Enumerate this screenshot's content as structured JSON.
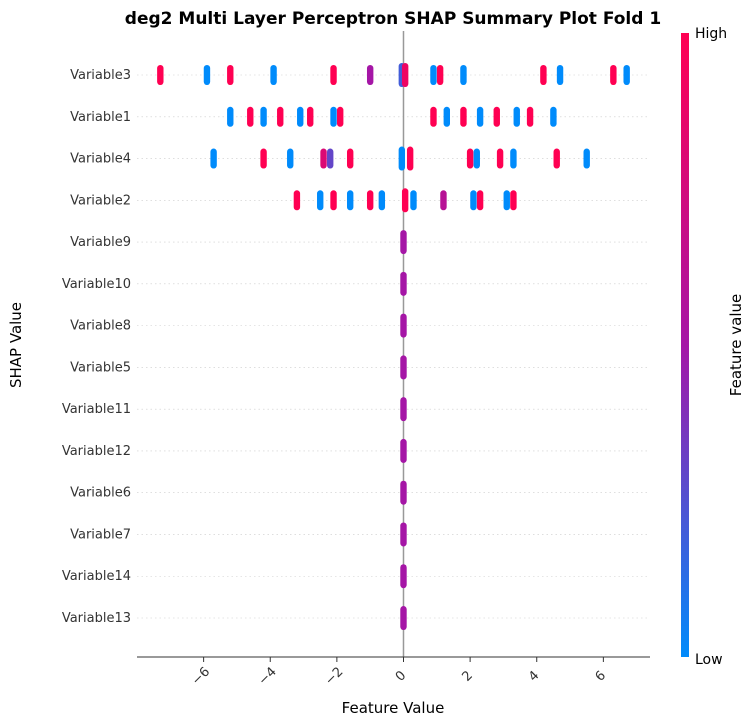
{
  "chart_data": {
    "type": "scatter",
    "title": "deg2 Multi Layer Perceptron SHAP Summary Plot Fold 1",
    "xlabel": "Feature Value",
    "ylabel": "SHAP Value",
    "xlim": [
      -8.0,
      7.4
    ],
    "x_ticks": [
      -6,
      -4,
      -2,
      0,
      2,
      4,
      6
    ],
    "x_tick_labels": [
      "−6",
      "−4",
      "−2",
      "0",
      "2",
      "4",
      "6"
    ],
    "grid": "horizontal dotted",
    "colorbar": {
      "label": "Feature value",
      "high_label": "High",
      "low_label": "Low",
      "low_color": "#008bfb",
      "mid_color": "#a516a6",
      "high_color": "#ff0052"
    },
    "categories": [
      "Variable3",
      "Variable1",
      "Variable4",
      "Variable2",
      "Variable9",
      "Variable10",
      "Variable8",
      "Variable5",
      "Variable11",
      "Variable12",
      "Variable6",
      "Variable7",
      "Variable14",
      "Variable13"
    ],
    "series": [
      {
        "category": "Variable3",
        "points": [
          {
            "x": -7.3,
            "v": 1
          },
          {
            "x": -5.9,
            "v": 0
          },
          {
            "x": -5.2,
            "v": 1
          },
          {
            "x": -3.9,
            "v": 0
          },
          {
            "x": -2.1,
            "v": 1
          },
          {
            "x": -1.0,
            "v": 0.5
          },
          {
            "x": -0.05,
            "v": 0.2
          },
          {
            "x": 0.05,
            "v": 0.9
          },
          {
            "x": 0.9,
            "v": 0
          },
          {
            "x": 1.1,
            "v": 1
          },
          {
            "x": 1.8,
            "v": 0
          },
          {
            "x": 4.2,
            "v": 1
          },
          {
            "x": 4.7,
            "v": 0
          },
          {
            "x": 6.3,
            "v": 1
          },
          {
            "x": 6.7,
            "v": 0
          }
        ]
      },
      {
        "category": "Variable1",
        "points": [
          {
            "x": -5.2,
            "v": 0
          },
          {
            "x": -4.6,
            "v": 1
          },
          {
            "x": -4.2,
            "v": 0
          },
          {
            "x": -3.7,
            "v": 1
          },
          {
            "x": -3.1,
            "v": 0
          },
          {
            "x": -2.8,
            "v": 1
          },
          {
            "x": -2.1,
            "v": 0
          },
          {
            "x": -1.9,
            "v": 1
          },
          {
            "x": 0.9,
            "v": 1
          },
          {
            "x": 1.3,
            "v": 0
          },
          {
            "x": 1.8,
            "v": 1
          },
          {
            "x": 2.3,
            "v": 0
          },
          {
            "x": 2.8,
            "v": 1
          },
          {
            "x": 3.4,
            "v": 0
          },
          {
            "x": 3.8,
            "v": 1
          },
          {
            "x": 4.5,
            "v": 0
          }
        ]
      },
      {
        "category": "Variable4",
        "points": [
          {
            "x": -5.7,
            "v": 0
          },
          {
            "x": -4.2,
            "v": 1
          },
          {
            "x": -3.4,
            "v": 0
          },
          {
            "x": -2.4,
            "v": 0.8
          },
          {
            "x": -2.2,
            "v": 0.3
          },
          {
            "x": -1.6,
            "v": 1
          },
          {
            "x": -0.05,
            "v": 0
          },
          {
            "x": 0.2,
            "v": 1
          },
          {
            "x": 2.0,
            "v": 1
          },
          {
            "x": 2.2,
            "v": 0
          },
          {
            "x": 2.9,
            "v": 1
          },
          {
            "x": 3.3,
            "v": 0
          },
          {
            "x": 4.6,
            "v": 1
          },
          {
            "x": 5.5,
            "v": 0
          }
        ]
      },
      {
        "category": "Variable2",
        "points": [
          {
            "x": -3.2,
            "v": 1
          },
          {
            "x": -2.5,
            "v": 0
          },
          {
            "x": -2.1,
            "v": 1
          },
          {
            "x": -1.6,
            "v": 0
          },
          {
            "x": -1.0,
            "v": 1
          },
          {
            "x": -0.65,
            "v": 0
          },
          {
            "x": 0.05,
            "v": 1
          },
          {
            "x": 0.3,
            "v": 0
          },
          {
            "x": 1.2,
            "v": 0.6
          },
          {
            "x": 2.1,
            "v": 0
          },
          {
            "x": 2.3,
            "v": 1
          },
          {
            "x": 3.1,
            "v": 0
          },
          {
            "x": 3.3,
            "v": 1
          }
        ]
      },
      {
        "category": "Variable9",
        "points": [
          {
            "x": 0.0,
            "v": 0.5
          }
        ]
      },
      {
        "category": "Variable10",
        "points": [
          {
            "x": 0.0,
            "v": 0.5
          }
        ]
      },
      {
        "category": "Variable8",
        "points": [
          {
            "x": 0.0,
            "v": 0.5
          }
        ]
      },
      {
        "category": "Variable5",
        "points": [
          {
            "x": 0.0,
            "v": 0.5
          }
        ]
      },
      {
        "category": "Variable11",
        "points": [
          {
            "x": 0.0,
            "v": 0.5
          }
        ]
      },
      {
        "category": "Variable12",
        "points": [
          {
            "x": 0.0,
            "v": 0.5
          }
        ]
      },
      {
        "category": "Variable6",
        "points": [
          {
            "x": 0.0,
            "v": 0.5
          }
        ]
      },
      {
        "category": "Variable7",
        "points": [
          {
            "x": 0.0,
            "v": 0.5
          }
        ]
      },
      {
        "category": "Variable14",
        "points": [
          {
            "x": 0.0,
            "v": 0.5
          }
        ]
      },
      {
        "category": "Variable13",
        "points": [
          {
            "x": 0.0,
            "v": 0.5
          }
        ]
      }
    ]
  }
}
